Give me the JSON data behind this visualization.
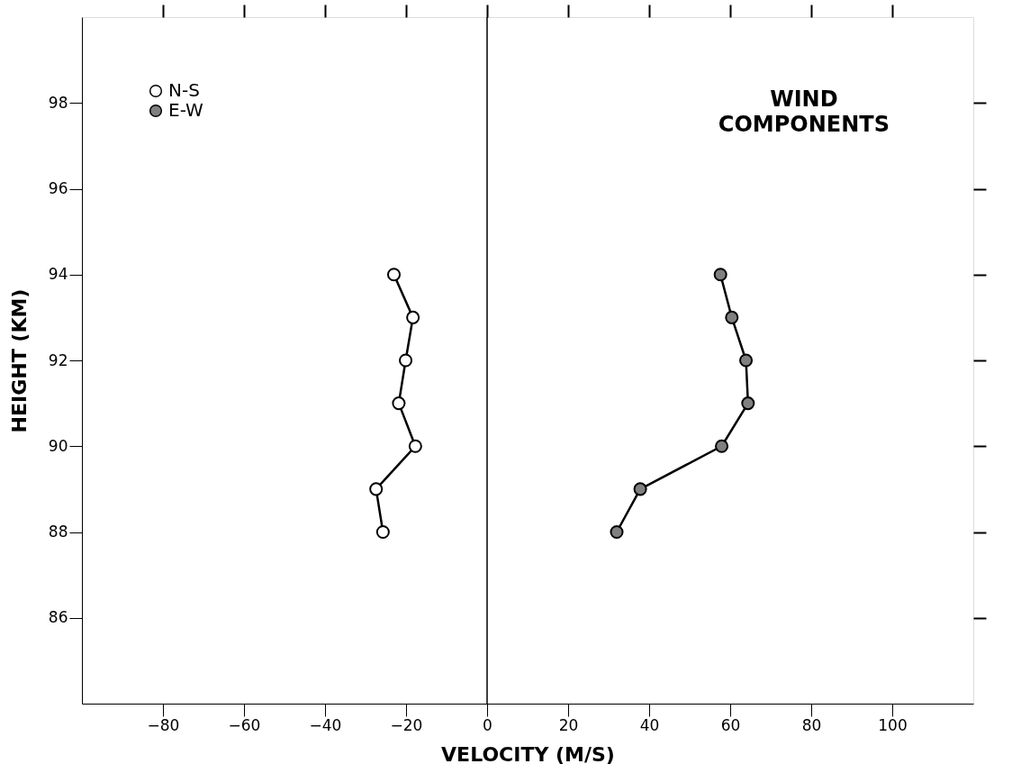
{
  "chart_data": {
    "type": "line",
    "xlabel": "VELOCITY (M/S)",
    "ylabel": "HEIGHT (KM)",
    "annotations": [
      "WIND\nCOMPONENTS"
    ],
    "series": [
      {
        "name": "N-S",
        "color": "#ffffff",
        "x": [
          -23,
          -18.3,
          -20.1,
          -21.8,
          -17.7,
          -27.4,
          -25.7
        ],
        "values": [
          94,
          93,
          92,
          91,
          90,
          89,
          88
        ]
      },
      {
        "name": "E-W",
        "color": "#808080",
        "x": [
          57.6,
          60.4,
          63.9,
          64.4,
          57.9,
          37.8,
          32.0
        ],
        "values": [
          94,
          93,
          92,
          91,
          90,
          89,
          88
        ]
      }
    ],
    "xlim": [
      -100,
      120
    ],
    "xticks": [
      -80,
      -60,
      -40,
      -20,
      0,
      20,
      40,
      60,
      80,
      100
    ],
    "ylim": [
      84,
      100
    ],
    "yticks": [
      86,
      88,
      90,
      92,
      94,
      96,
      98
    ],
    "ref_lines": [
      {
        "axis": "x",
        "value": 0,
        "label": null
      }
    ],
    "marker": "circle",
    "line_style": "solid",
    "grid": false,
    "legend": "top left"
  }
}
